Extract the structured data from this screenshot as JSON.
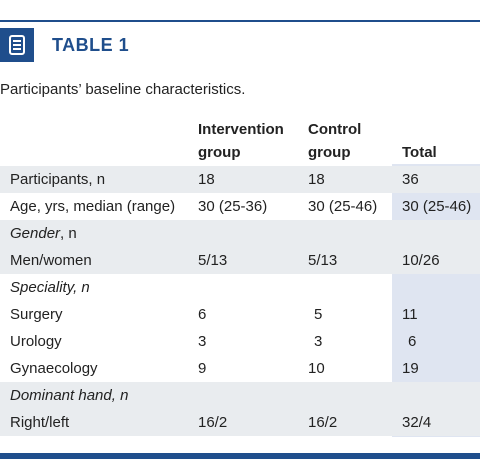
{
  "table": {
    "title": "TABLE 1",
    "caption": "Participants’ baseline characteristics.",
    "columns": {
      "intervention_1": "Intervention",
      "intervention_2": "group",
      "control_1": "Control",
      "control_2": "group",
      "total": "Total"
    },
    "rows": [
      {
        "label": "Participants, n",
        "intervention": "18",
        "control": "18",
        "total": "36"
      },
      {
        "label": "Age, yrs, median (range)",
        "intervention": "30 (25-36)",
        "control": "30 (25-46)",
        "total": "30 (25-46)"
      },
      {
        "label_italic": "Gender",
        "label_suffix": ", n",
        "intervention": "",
        "control": "",
        "total": ""
      },
      {
        "label": "Men/women",
        "intervention": "5/13",
        "control": "5/13",
        "total": "10/26"
      },
      {
        "label_italic": "Speciality, n",
        "intervention": "",
        "control": "",
        "total": ""
      },
      {
        "label": "Surgery",
        "intervention": "6",
        "control": "5",
        "total": "11"
      },
      {
        "label": "Urology",
        "intervention": "3",
        "control": "3",
        "total": "6"
      },
      {
        "label": "Gynaecology",
        "intervention": "9",
        "control": "10",
        "total": "19"
      },
      {
        "label_italic": "Dominant hand, n",
        "intervention": "",
        "control": "",
        "total": ""
      },
      {
        "label": "Right/left",
        "intervention": "16/2",
        "control": "16/2",
        "total": "32/4"
      }
    ]
  },
  "colors": {
    "accent": "#1f4e8c",
    "row_shade": "#e9ecef",
    "total_shade": "#dfe5f1"
  },
  "icons": {
    "title_icon": "document-list-icon"
  }
}
